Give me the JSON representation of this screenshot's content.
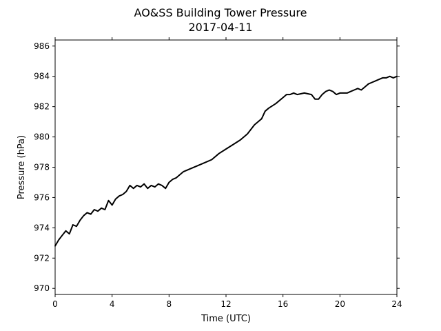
{
  "chart_data": {
    "type": "line",
    "title": "AO&SS Building Tower Pressure",
    "subtitle": "2017-04-11",
    "xlabel": "Time (UTC)",
    "ylabel": "Pressure (hPa)",
    "xlim": [
      0,
      24
    ],
    "ylim": [
      969.6,
      986.4
    ],
    "xticks": [
      0,
      4,
      8,
      12,
      16,
      20,
      24
    ],
    "yticks": [
      970,
      972,
      974,
      976,
      978,
      980,
      982,
      984,
      986
    ],
    "grid": false,
    "legend": "none",
    "series": [
      {
        "color": "#000000",
        "x": [
          0,
          0.25,
          0.5,
          0.75,
          1.0,
          1.25,
          1.5,
          1.75,
          2.0,
          2.25,
          2.5,
          2.75,
          3.0,
          3.25,
          3.5,
          3.75,
          4.0,
          4.25,
          4.5,
          4.75,
          5.0,
          5.25,
          5.5,
          5.75,
          6.0,
          6.25,
          6.5,
          6.75,
          7.0,
          7.25,
          7.5,
          7.75,
          8.0,
          8.25,
          8.5,
          8.75,
          9.0,
          9.5,
          10.0,
          10.5,
          11.0,
          11.5,
          12.0,
          12.5,
          13.0,
          13.5,
          14.0,
          14.25,
          14.5,
          14.75,
          15.0,
          15.5,
          16.0,
          16.25,
          16.5,
          16.75,
          17.0,
          17.5,
          18.0,
          18.25,
          18.5,
          18.75,
          19.0,
          19.25,
          19.5,
          19.75,
          20.0,
          20.25,
          20.5,
          20.75,
          21.0,
          21.25,
          21.5,
          21.75,
          22.0,
          22.25,
          22.5,
          22.75,
          23.0,
          23.25,
          23.5,
          23.75,
          24.0
        ],
        "y": [
          972.8,
          973.2,
          973.5,
          973.8,
          973.6,
          974.2,
          974.1,
          974.5,
          974.8,
          975.0,
          974.9,
          975.2,
          975.1,
          975.3,
          975.2,
          975.8,
          975.5,
          975.9,
          976.1,
          976.2,
          976.4,
          976.8,
          976.6,
          976.8,
          976.7,
          976.9,
          976.6,
          976.8,
          976.7,
          976.9,
          976.8,
          976.6,
          977.0,
          977.2,
          977.3,
          977.5,
          977.7,
          977.9,
          978.1,
          978.3,
          978.5,
          978.9,
          979.2,
          979.5,
          979.8,
          980.2,
          980.8,
          981.0,
          981.2,
          981.7,
          981.9,
          982.2,
          982.6,
          982.8,
          982.8,
          982.9,
          982.8,
          982.9,
          982.8,
          982.5,
          982.5,
          982.8,
          983.0,
          983.1,
          983.0,
          982.8,
          982.9,
          982.9,
          982.9,
          983.0,
          983.1,
          983.2,
          983.1,
          983.3,
          983.5,
          983.6,
          983.7,
          983.8,
          983.9,
          983.9,
          984.0,
          983.9,
          984.0
        ]
      }
    ]
  }
}
